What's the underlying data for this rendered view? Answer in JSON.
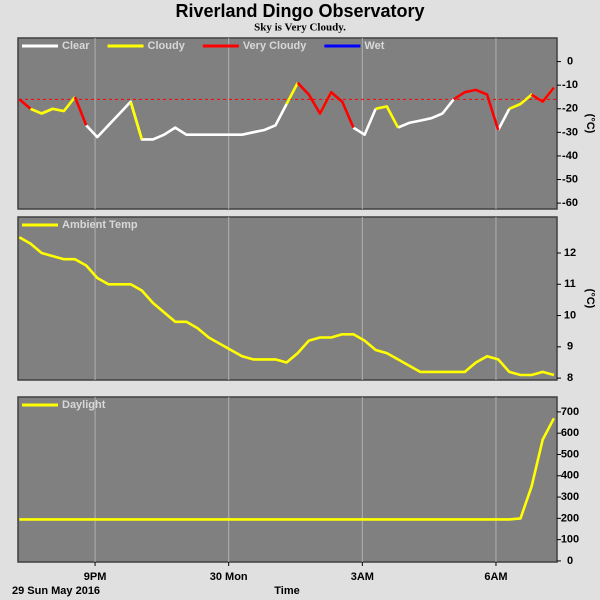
{
  "title": "Riverland Dingo Observatory",
  "subtitle": "Sky is Very Cloudy.",
  "chart_data": [
    {
      "type": "line",
      "ylabel": "(°C)",
      "x": [
        19.3,
        19.55,
        19.8,
        20.05,
        20.3,
        20.55,
        20.8,
        21.05,
        21.3,
        21.55,
        21.8,
        22.05,
        22.3,
        22.55,
        22.8,
        23.05,
        23.3,
        23.55,
        23.8,
        24.05,
        24.3,
        24.55,
        24.8,
        25.05,
        25.3,
        25.55,
        25.8,
        26.05,
        26.3,
        26.55,
        26.8,
        27.05,
        27.3,
        27.55,
        27.8,
        28.05,
        28.3,
        28.55,
        28.8,
        29.05,
        29.3,
        29.55,
        29.8,
        30.05,
        30.3,
        30.55,
        30.8,
        31.05,
        31.3
      ],
      "xlim": [
        19.27,
        31.37
      ],
      "ylim": [
        -62.5,
        10
      ],
      "yticks": [
        0,
        -10,
        -20,
        -30,
        -40,
        -50,
        -60
      ],
      "grid": "x",
      "reference_line": {
        "value": -16,
        "color": "#ff0000"
      },
      "series": [
        {
          "name": "Clear",
          "color": "#ffffff",
          "values": [
            null,
            null,
            -22,
            -20,
            null,
            null,
            -27,
            -32,
            -27,
            -22,
            -17,
            -33,
            -33,
            -31,
            -28,
            -31,
            -31,
            -31,
            -31,
            -31,
            -31,
            -30,
            -29,
            -27,
            -18,
            null,
            null,
            null,
            null,
            null,
            -28,
            -31,
            -20,
            null,
            -28,
            -26,
            -25,
            -24,
            -22,
            -16,
            null,
            null,
            null,
            -29,
            -20,
            null,
            null,
            null,
            null
          ]
        },
        {
          "name": "Cloudy",
          "color": "#ffff00",
          "values": [
            null,
            -20,
            -22,
            -20,
            -21,
            -15,
            null,
            null,
            null,
            null,
            -17,
            -33,
            null,
            null,
            null,
            null,
            null,
            null,
            null,
            null,
            null,
            null,
            null,
            null,
            -18,
            -9,
            null,
            -22,
            -13,
            null,
            null,
            null,
            -20,
            -19,
            -28,
            null,
            null,
            null,
            null,
            null,
            null,
            null,
            null,
            null,
            -20,
            -18,
            -14,
            -17,
            -11
          ]
        },
        {
          "name": "Very Cloudy",
          "color": "#ff0000",
          "values": [
            -16,
            -20,
            null,
            null,
            null,
            -15,
            -27,
            null,
            null,
            null,
            null,
            null,
            null,
            null,
            null,
            null,
            null,
            null,
            null,
            null,
            null,
            null,
            null,
            null,
            null,
            -9,
            -14,
            -22,
            -13,
            -17,
            -28,
            null,
            null,
            null,
            null,
            null,
            null,
            null,
            null,
            -16,
            -13,
            -12,
            -14,
            -29,
            null,
            null,
            -14,
            -17,
            -11
          ]
        },
        {
          "name": "Wet",
          "color": "#0000ff",
          "values": [
            null,
            null,
            null,
            null,
            null,
            null,
            null,
            null,
            null,
            null,
            null,
            null,
            null,
            null,
            null,
            null,
            null,
            null,
            null,
            null,
            null,
            null,
            null,
            null,
            null,
            null,
            null,
            null,
            null,
            null,
            null,
            null,
            null,
            null,
            null,
            null,
            null,
            null,
            null,
            null,
            null,
            null,
            null,
            null,
            null,
            null,
            null,
            null,
            null
          ]
        }
      ]
    },
    {
      "type": "line",
      "ylabel": "(°C)",
      "x": [
        19.3,
        19.55,
        19.8,
        20.05,
        20.3,
        20.55,
        20.8,
        21.05,
        21.3,
        21.55,
        21.8,
        22.05,
        22.3,
        22.55,
        22.8,
        23.05,
        23.3,
        23.55,
        23.8,
        24.05,
        24.3,
        24.55,
        24.8,
        25.05,
        25.3,
        25.55,
        25.8,
        26.05,
        26.3,
        26.55,
        26.8,
        27.05,
        27.3,
        27.55,
        27.8,
        28.05,
        28.3,
        28.55,
        28.8,
        29.05,
        29.3,
        29.55,
        29.8,
        30.05,
        30.3,
        30.55,
        30.8,
        31.05,
        31.3
      ],
      "xlim": [
        19.27,
        31.37
      ],
      "ylim": [
        7.94,
        13.15
      ],
      "yticks": [
        8,
        9,
        10,
        11,
        12
      ],
      "grid": "x",
      "series": [
        {
          "name": "Ambient Temp",
          "color": "#ffff00",
          "values": [
            12.5,
            12.3,
            12.0,
            11.9,
            11.8,
            11.8,
            11.6,
            11.2,
            11.0,
            11.0,
            11.0,
            10.8,
            10.4,
            10.1,
            9.8,
            9.8,
            9.6,
            9.3,
            9.1,
            8.9,
            8.7,
            8.6,
            8.6,
            8.6,
            8.5,
            8.8,
            9.2,
            9.3,
            9.3,
            9.4,
            9.4,
            9.2,
            8.9,
            8.8,
            8.6,
            8.4,
            8.2,
            8.2,
            8.2,
            8.2,
            8.2,
            8.5,
            8.7,
            8.6,
            8.2,
            8.1,
            8.1,
            8.2,
            8.1
          ]
        }
      ]
    },
    {
      "type": "line",
      "xlabel": "Time",
      "date": "29 Sun May 2016",
      "x": [
        19.3,
        19.55,
        19.8,
        20.05,
        20.3,
        20.55,
        20.8,
        21.05,
        21.3,
        21.55,
        21.8,
        22.05,
        22.3,
        22.55,
        22.8,
        23.05,
        23.3,
        23.55,
        23.8,
        24.05,
        24.3,
        24.55,
        24.8,
        25.05,
        25.3,
        25.55,
        25.8,
        26.05,
        26.3,
        26.55,
        26.8,
        27.05,
        27.3,
        27.55,
        27.8,
        28.05,
        28.3,
        28.55,
        28.8,
        29.05,
        29.3,
        29.55,
        29.8,
        30.05,
        30.3,
        30.55,
        30.8,
        31.05,
        31.3
      ],
      "xlim": [
        19.27,
        31.37
      ],
      "xticks": [
        {
          "value": 21,
          "label": "9PM"
        },
        {
          "value": 24,
          "label": "30 Mon"
        },
        {
          "value": 27,
          "label": "3AM"
        },
        {
          "value": 30,
          "label": "6AM"
        }
      ],
      "ylim": [
        -5,
        770
      ],
      "yticks": [
        0,
        100,
        200,
        300,
        400,
        500,
        600,
        700
      ],
      "grid": "x",
      "series": [
        {
          "name": "Daylight",
          "color": "#ffff00",
          "values": [
            195,
            195,
            195,
            195,
            195,
            195,
            195,
            195,
            195,
            195,
            195,
            195,
            195,
            195,
            195,
            195,
            195,
            195,
            195,
            195,
            195,
            195,
            195,
            195,
            195,
            195,
            195,
            195,
            195,
            195,
            195,
            195,
            195,
            195,
            195,
            195,
            195,
            195,
            195,
            195,
            195,
            195,
            195,
            195,
            195,
            200,
            350,
            570,
            670
          ]
        }
      ]
    }
  ]
}
